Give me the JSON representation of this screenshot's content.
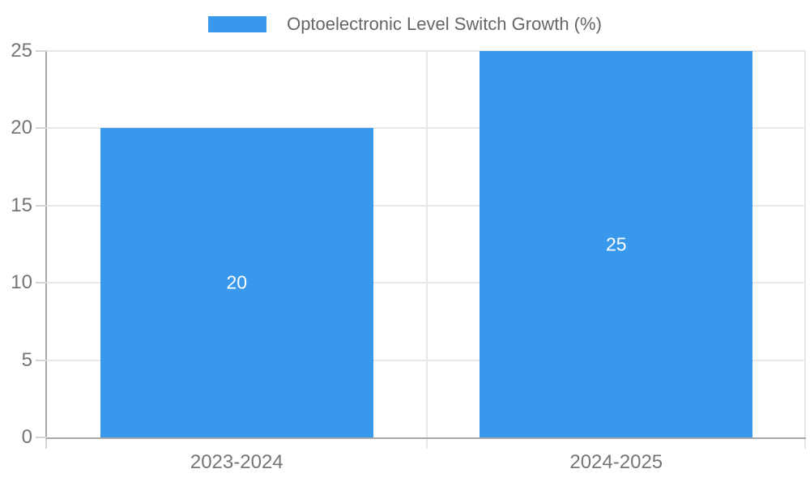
{
  "chart_data": {
    "type": "bar",
    "title": "",
    "legend": {
      "label": "Optoelectronic Level Switch Growth (%)",
      "position": "top"
    },
    "categories": [
      "2023-2024",
      "2024-2025"
    ],
    "series": [
      {
        "name": "Optoelectronic Level Switch Growth (%)",
        "values": [
          20,
          25
        ]
      }
    ],
    "value_labels": [
      "20",
      "25"
    ],
    "xlabel": "",
    "ylabel": "",
    "ylim": [
      0,
      25
    ],
    "yticks": [
      0,
      5,
      10,
      15,
      20,
      25
    ],
    "grid": true,
    "legend_position": "top",
    "colors": {
      "bar": "#3899ec",
      "grid": "#e8e8e8",
      "axis": "#a8a8a8",
      "tick_stub": "#d4d4d4",
      "tick_label_text": "#757575",
      "legend_text": "#666666",
      "value_label_text": "#ffffff",
      "background": "#ffffff"
    }
  }
}
